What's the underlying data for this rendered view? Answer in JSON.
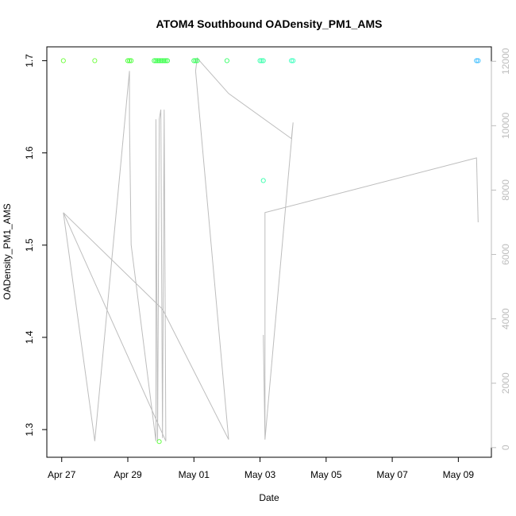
{
  "chart_data": {
    "type": "scatter",
    "title": "ATOM4 Southbound OADensity_PM1_AMS",
    "xlabel": "Date",
    "ylabel": "OADensity_PM1_AMS",
    "x_ticks": [
      "Apr 27",
      "Apr 29",
      "May 01",
      "May 03",
      "May 05",
      "May 07",
      "May 09"
    ],
    "x_tick_days": [
      0,
      2,
      4,
      6,
      8,
      10,
      12
    ],
    "xlim_days": [
      -0.45,
      13.0
    ],
    "ylim": [
      1.27,
      1.715
    ],
    "y_ticks": [
      1.3,
      1.4,
      1.5,
      1.6,
      1.7
    ],
    "secondary_axis": {
      "ylim": [
        -300,
        12450
      ],
      "ticks": [
        0,
        2000,
        4000,
        6000,
        8000,
        10000,
        12000
      ],
      "color": "#bdbdbd"
    },
    "grid": false,
    "points": [
      {
        "day": 0.05,
        "y": 1.7,
        "color": "#66ff33"
      },
      {
        "day": 1.0,
        "y": 1.7,
        "color": "#66ff33"
      },
      {
        "day": 2.0,
        "y": 1.7,
        "color": "#44ff33"
      },
      {
        "day": 2.05,
        "y": 1.7,
        "color": "#44ff33"
      },
      {
        "day": 2.1,
        "y": 1.7,
        "color": "#44ff33"
      },
      {
        "day": 2.8,
        "y": 1.7,
        "color": "#33ff44"
      },
      {
        "day": 2.85,
        "y": 1.7,
        "color": "#33ff44"
      },
      {
        "day": 2.9,
        "y": 1.7,
        "color": "#33ff44"
      },
      {
        "day": 2.95,
        "y": 1.7,
        "color": "#33ff44"
      },
      {
        "day": 3.0,
        "y": 1.7,
        "color": "#33ff44"
      },
      {
        "day": 3.05,
        "y": 1.7,
        "color": "#33ff44"
      },
      {
        "day": 3.1,
        "y": 1.7,
        "color": "#33ff44"
      },
      {
        "day": 3.15,
        "y": 1.7,
        "color": "#33ff44"
      },
      {
        "day": 3.2,
        "y": 1.7,
        "color": "#33ff44"
      },
      {
        "day": 2.95,
        "y": 1.287,
        "color": "#55ff33"
      },
      {
        "day": 4.0,
        "y": 1.7,
        "color": "#33ff55"
      },
      {
        "day": 4.05,
        "y": 1.7,
        "color": "#33ff55"
      },
      {
        "day": 4.1,
        "y": 1.7,
        "color": "#33ff55"
      },
      {
        "day": 5.0,
        "y": 1.7,
        "color": "#33ff66"
      },
      {
        "day": 6.0,
        "y": 1.7,
        "color": "#33ffaa"
      },
      {
        "day": 6.05,
        "y": 1.7,
        "color": "#33ffaa"
      },
      {
        "day": 6.1,
        "y": 1.7,
        "color": "#33ffaa"
      },
      {
        "day": 6.1,
        "y": 1.57,
        "color": "#33ffaa"
      },
      {
        "day": 6.95,
        "y": 1.7,
        "color": "#33ffbb"
      },
      {
        "day": 7.0,
        "y": 1.7,
        "color": "#33ffbb"
      },
      {
        "day": 12.55,
        "y": 1.7,
        "color": "#33bbff"
      },
      {
        "day": 12.6,
        "y": 1.7,
        "color": "#33bbff"
      }
    ],
    "line_series": {
      "color": "#bdbdbd",
      "axis": "secondary",
      "points": [
        [
          0.05,
          7300
        ],
        [
          1.0,
          200
        ],
        [
          1.0,
          200
        ],
        [
          2.05,
          11700
        ],
        [
          2.05,
          10300
        ],
        [
          2.05,
          10100
        ],
        [
          2.1,
          6300
        ],
        [
          2.1,
          6300
        ],
        [
          2.85,
          200
        ],
        [
          2.85,
          10200
        ],
        [
          2.9,
          200
        ],
        [
          2.95,
          10200
        ],
        [
          3.0,
          10500
        ],
        [
          3.05,
          300
        ],
        [
          3.1,
          10500
        ],
        [
          3.15,
          200
        ],
        [
          0.05,
          7300
        ],
        [
          3.05,
          4300
        ],
        [
          5.05,
          250
        ],
        [
          5.05,
          250
        ],
        [
          4.05,
          11700
        ],
        [
          4.1,
          12100
        ],
        [
          5.05,
          11000
        ],
        [
          6.95,
          9600
        ],
        [
          7.0,
          10100
        ],
        [
          6.15,
          250
        ],
        [
          6.1,
          3500
        ],
        [
          6.15,
          250
        ],
        [
          6.15,
          7300
        ],
        [
          12.55,
          9000
        ],
        [
          12.6,
          7000
        ]
      ]
    }
  }
}
